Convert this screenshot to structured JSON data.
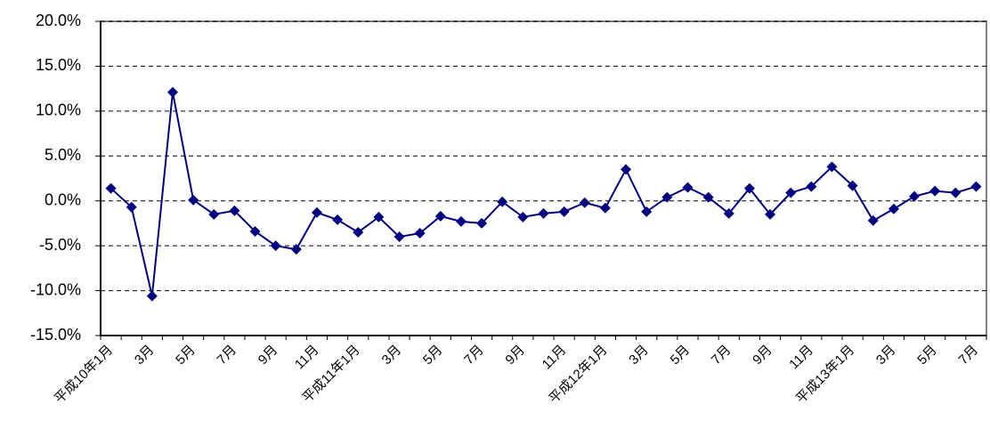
{
  "chart_data": {
    "type": "line",
    "categories": [
      "平成10年1月",
      null,
      "3月",
      null,
      "5月",
      null,
      "7月",
      null,
      "9月",
      null,
      "11月",
      null,
      "平成11年1月",
      null,
      "3月",
      null,
      "5月",
      null,
      "7月",
      null,
      "9月",
      null,
      "11月",
      null,
      "平成12年1月",
      null,
      "3月",
      null,
      "5月",
      null,
      "7月",
      null,
      "9月",
      null,
      "11月",
      null,
      "平成13年1月",
      null,
      "3月",
      null,
      "5月",
      null,
      "7月"
    ],
    "series": [
      {
        "color": "#000080",
        "values": [
          1.4,
          -0.7,
          -10.6,
          12.1,
          0.1,
          -1.5,
          -1.1,
          -3.4,
          -5.0,
          -5.4,
          -1.3,
          -2.1,
          -3.5,
          -1.8,
          -4.0,
          -3.6,
          -1.7,
          -2.3,
          -2.5,
          -0.1,
          -1.8,
          -1.4,
          -1.2,
          -0.2,
          -0.8,
          3.5,
          -1.2,
          0.4,
          1.5,
          0.4,
          -1.4,
          1.4,
          -1.5,
          0.9,
          1.6,
          3.8,
          1.7,
          -2.2,
          -0.9,
          0.5,
          1.1,
          0.9,
          1.6
        ]
      }
    ],
    "ylim": [
      -15,
      20
    ],
    "yticks": [
      {
        "value": -15,
        "label": "-15.0%"
      },
      {
        "value": -10,
        "label": "-10.0%"
      },
      {
        "value": -5,
        "label": "-5.0%"
      },
      {
        "value": 0,
        "label": "0.0%"
      },
      {
        "value": 5,
        "label": "5.0%"
      },
      {
        "value": 10,
        "label": "10.0%"
      },
      {
        "value": 15,
        "label": "15.0%"
      },
      {
        "value": 20,
        "label": "20.0%"
      }
    ],
    "grid": true
  }
}
